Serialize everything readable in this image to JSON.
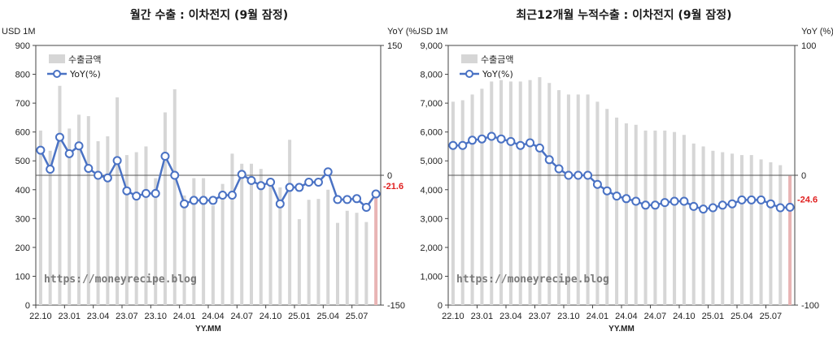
{
  "chart_data": [
    {
      "type": "bar",
      "title": "월간 수출 : 이차전지 (9월 잠정)",
      "y_left_label": "USD 1M",
      "y_right_label": "YoY (%)",
      "xlabel": "YY.MM",
      "ylim_left": [
        0,
        900
      ],
      "ylim_right": [
        -150,
        150
      ],
      "y_left_ticks": [
        "0",
        "100",
        "200",
        "300",
        "400",
        "500",
        "600",
        "700",
        "800",
        "900"
      ],
      "y_right_ticks": [
        "-150",
        "0",
        "150"
      ],
      "x_tick_labels": [
        "22.10",
        "23.01",
        "23.04",
        "23.07",
        "23.10",
        "24.01",
        "24.04",
        "24.07",
        "24.10",
        "25.01",
        "25.04",
        "25.07"
      ],
      "legend": {
        "bars": "수출금액",
        "line": "YoY(%)"
      },
      "watermark": "https://moneyrecipe.blog",
      "last_yoy_label": "-21.6",
      "categories": [
        "22.10",
        "22.11",
        "22.12",
        "23.01",
        "23.02",
        "23.03",
        "23.04",
        "23.05",
        "23.06",
        "23.07",
        "23.08",
        "23.09",
        "23.10",
        "23.11",
        "23.12",
        "24.01",
        "24.02",
        "24.03",
        "24.04",
        "24.05",
        "24.06",
        "24.07",
        "24.08",
        "24.09",
        "24.10",
        "24.11",
        "24.12",
        "25.01",
        "25.02",
        "25.03",
        "25.04",
        "25.05",
        "25.06",
        "25.07",
        "25.08",
        "25.09"
      ],
      "series": [
        {
          "name": "수출금액",
          "kind": "bar",
          "values": [
            605,
            535,
            760,
            612,
            660,
            655,
            568,
            585,
            720,
            520,
            530,
            550,
            440,
            668,
            748,
            380,
            440,
            440,
            345,
            420,
            525,
            490,
            490,
            472,
            435,
            408,
            573,
            298,
            365,
            368,
            400,
            285,
            327,
            320,
            288,
            378
          ]
        },
        {
          "name": "YoY(%)",
          "kind": "line",
          "values": [
            29,
            7,
            44,
            25,
            34,
            8,
            0,
            -3,
            17,
            -18,
            -24,
            -21,
            -21,
            22,
            0,
            -33,
            -29,
            -29,
            -29,
            -23,
            -23,
            1,
            -6,
            -12,
            -8,
            -33,
            -14,
            -14,
            -8,
            -8,
            4,
            -28,
            -28,
            -27,
            -37,
            -21.6
          ]
        }
      ],
      "colors": {
        "bar": "#d6d6d6",
        "bar_last": "#e8b4b4",
        "line": "#4a72c4",
        "marker_fill": "#ffffff",
        "last_label": "#e02020"
      }
    },
    {
      "type": "bar",
      "title": "최근12개월 누적수출 : 이차전지 (9월 잠정)",
      "y_left_label": "USD 1M",
      "y_right_label": "YoY (%)",
      "xlabel": "YY.MM",
      "ylim_left": [
        0,
        9000
      ],
      "ylim_right": [
        -100,
        100
      ],
      "y_left_ticks": [
        "0",
        "1,000",
        "2,000",
        "3,000",
        "4,000",
        "5,000",
        "6,000",
        "7,000",
        "8,000",
        "9,000"
      ],
      "y_right_ticks": [
        "-100",
        "0",
        "100"
      ],
      "x_tick_labels": [
        "22.10",
        "23.01",
        "23.04",
        "23.07",
        "23.10",
        "24.01",
        "24.04",
        "24.07",
        "24.10",
        "25.01",
        "25.04",
        "25.07"
      ],
      "legend": {
        "bars": "수출금액",
        "line": "YoY(%)"
      },
      "watermark": "https://moneyrecipe.blog",
      "last_yoy_label": "-24.6",
      "categories": [
        "22.10",
        "22.11",
        "22.12",
        "23.01",
        "23.02",
        "23.03",
        "23.04",
        "23.05",
        "23.06",
        "23.07",
        "23.08",
        "23.09",
        "23.10",
        "23.11",
        "23.12",
        "24.01",
        "24.02",
        "24.03",
        "24.04",
        "24.05",
        "24.06",
        "24.07",
        "24.08",
        "24.09",
        "24.10",
        "24.11",
        "24.12",
        "25.01",
        "25.02",
        "25.03",
        "25.04",
        "25.05",
        "25.06",
        "25.07",
        "25.08",
        "25.09"
      ],
      "series": [
        {
          "name": "수출금액",
          "kind": "bar",
          "values": [
            7050,
            7100,
            7300,
            7500,
            7750,
            7800,
            7750,
            7750,
            7800,
            7900,
            7700,
            7450,
            7300,
            7300,
            7300,
            7050,
            6800,
            6500,
            6300,
            6250,
            6050,
            6050,
            6050,
            6000,
            5900,
            5600,
            5500,
            5350,
            5300,
            5250,
            5200,
            5200,
            5050,
            4950,
            4850,
            4480
          ]
        },
        {
          "name": "YoY(%)",
          "kind": "line",
          "values": [
            23,
            23,
            27,
            28,
            30,
            28,
            26,
            23,
            25,
            21,
            12,
            5,
            0,
            0,
            0,
            -7,
            -12,
            -16,
            -18,
            -20,
            -23,
            -23,
            -21,
            -20,
            -20,
            -24,
            -26,
            -25,
            -23,
            -22,
            -19,
            -19,
            -19,
            -22,
            -25,
            -24.6
          ]
        }
      ],
      "colors": {
        "bar": "#d6d6d6",
        "bar_last": "#e8b4b4",
        "line": "#4a72c4",
        "marker_fill": "#ffffff",
        "last_label": "#e02020"
      }
    }
  ]
}
